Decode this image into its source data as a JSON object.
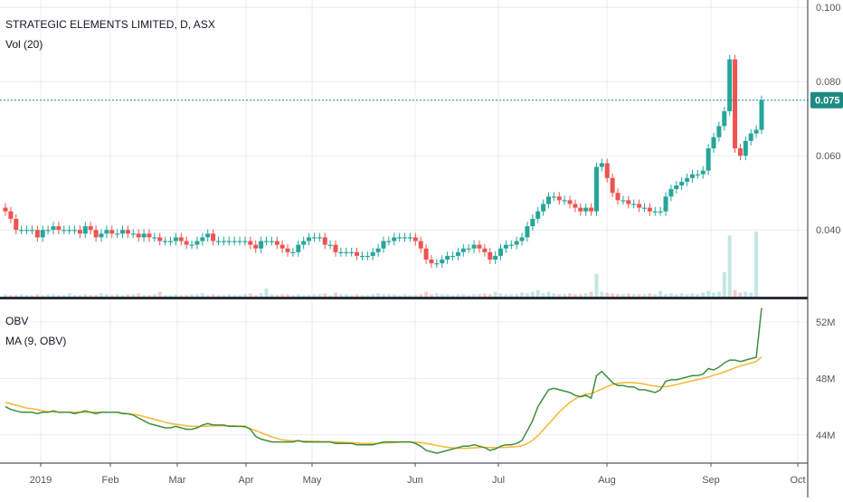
{
  "chart_header": {
    "title": "STRATEGIC ELEMENTS LIMITED, D, ASX",
    "volume_label": "Vol (20)"
  },
  "obv_header": {
    "label": "OBV",
    "ma_label": "MA (9, OBV)"
  },
  "colors": {
    "up": "#26a69a",
    "down": "#ef5350",
    "up_volume": "#9ad7d0",
    "down_volume": "#f5a6a4",
    "last_price": "#1d8a82",
    "obv": "#3e8e3e",
    "obv_ma": "#f7b731",
    "grid": "#e8ecf2",
    "axis_text": "#555555"
  },
  "chart_data": [
    {
      "type": "candlestick",
      "title": "STRATEGIC ELEMENTS LIMITED, D, ASX",
      "x_tick_labels": [
        "2019",
        "Feb",
        "Mar",
        "Apr",
        "May",
        "Jun",
        "Jul",
        "Aug",
        "Sep",
        "Oct"
      ],
      "y_tick_labels": [
        "0.100",
        "0.080",
        "0.060",
        "0.040"
      ],
      "ylim": [
        0.022,
        0.102
      ],
      "last_price": {
        "label": "0.075",
        "value": 0.075
      },
      "grid": true,
      "closes": [
        0.045,
        0.043,
        0.04,
        0.04,
        0.04,
        0.04,
        0.038,
        0.04,
        0.04,
        0.041,
        0.04,
        0.04,
        0.04,
        0.04,
        0.039,
        0.041,
        0.04,
        0.038,
        0.039,
        0.04,
        0.039,
        0.039,
        0.04,
        0.039,
        0.039,
        0.038,
        0.039,
        0.038,
        0.038,
        0.037,
        0.037,
        0.037,
        0.038,
        0.037,
        0.036,
        0.036,
        0.037,
        0.038,
        0.039,
        0.037,
        0.037,
        0.037,
        0.037,
        0.037,
        0.037,
        0.037,
        0.036,
        0.035,
        0.037,
        0.037,
        0.037,
        0.036,
        0.035,
        0.034,
        0.034,
        0.036,
        0.037,
        0.038,
        0.038,
        0.038,
        0.036,
        0.036,
        0.034,
        0.034,
        0.034,
        0.034,
        0.033,
        0.033,
        0.033,
        0.034,
        0.035,
        0.037,
        0.037,
        0.038,
        0.038,
        0.038,
        0.038,
        0.037,
        0.035,
        0.032,
        0.031,
        0.031,
        0.032,
        0.033,
        0.033,
        0.034,
        0.035,
        0.035,
        0.036,
        0.035,
        0.034,
        0.032,
        0.033,
        0.035,
        0.036,
        0.036,
        0.037,
        0.038,
        0.041,
        0.043,
        0.045,
        0.047,
        0.049,
        0.049,
        0.048,
        0.048,
        0.047,
        0.046,
        0.045,
        0.046,
        0.045,
        0.057,
        0.058,
        0.054,
        0.05,
        0.048,
        0.048,
        0.047,
        0.047,
        0.046,
        0.046,
        0.045,
        0.045,
        0.045,
        0.049,
        0.051,
        0.052,
        0.053,
        0.054,
        0.055,
        0.055,
        0.056,
        0.062,
        0.065,
        0.068,
        0.072,
        0.086,
        0.062,
        0.06,
        0.064,
        0.066,
        0.067,
        0.075
      ],
      "volume_ylim": [
        0,
        100
      ],
      "volume": [
        3,
        2,
        2,
        3,
        2,
        2,
        3,
        2,
        3,
        3,
        2,
        2,
        4,
        2,
        2,
        3,
        2,
        2,
        4,
        3,
        2,
        3,
        2,
        3,
        3,
        4,
        2,
        2,
        3,
        6,
        2,
        2,
        3,
        2,
        2,
        3,
        3,
        4,
        2,
        3,
        2,
        2,
        3,
        2,
        2,
        3,
        4,
        2,
        4,
        10,
        3,
        2,
        3,
        3,
        2,
        3,
        2,
        2,
        3,
        3,
        4,
        2,
        5,
        3,
        3,
        2,
        3,
        2,
        2,
        3,
        4,
        3,
        3,
        3,
        2,
        3,
        2,
        2,
        3,
        6,
        3,
        4,
        3,
        3,
        2,
        3,
        3,
        2,
        3,
        3,
        4,
        3,
        6,
        4,
        3,
        3,
        3,
        5,
        4,
        6,
        8,
        4,
        6,
        4,
        3,
        3,
        4,
        3,
        3,
        4,
        6,
        28,
        6,
        5,
        4,
        3,
        3,
        4,
        3,
        3,
        3,
        4,
        3,
        7,
        3,
        4,
        3,
        4,
        3,
        4,
        3,
        5,
        7,
        5,
        6,
        30,
        75,
        8,
        5,
        6,
        5,
        80
      ]
    },
    {
      "type": "line",
      "title": "OBV",
      "y_tick_labels": [
        "52M",
        "48M",
        "44M"
      ],
      "ylim": [
        42000000,
        53600000
      ],
      "series": [
        {
          "name": "OBV",
          "values": [
            46000000,
            45800000,
            45700000,
            45600000,
            45600000,
            45600000,
            45500000,
            45600000,
            45600000,
            45700000,
            45600000,
            45600000,
            45600000,
            45500000,
            45600000,
            45700000,
            45600000,
            45500000,
            45600000,
            45600000,
            45600000,
            45600000,
            45500000,
            45500000,
            45400000,
            45200000,
            45000000,
            44800000,
            44700000,
            44600000,
            44500000,
            44500000,
            44600000,
            44500000,
            44400000,
            44400000,
            44500000,
            44700000,
            44800000,
            44700000,
            44700000,
            44700000,
            44600000,
            44600000,
            44600000,
            44600000,
            44400000,
            43900000,
            43700000,
            43600000,
            43500000,
            43500000,
            43500000,
            43500000,
            43500000,
            43600000,
            43500000,
            43500000,
            43500000,
            43500000,
            43500000,
            43500000,
            43400000,
            43400000,
            43400000,
            43400000,
            43300000,
            43300000,
            43300000,
            43300000,
            43400000,
            43500000,
            43500000,
            43500000,
            43500000,
            43500000,
            43500000,
            43400000,
            43200000,
            42900000,
            42800000,
            42700000,
            42800000,
            42900000,
            43000000,
            43100000,
            43200000,
            43200000,
            43300000,
            43200000,
            43100000,
            42900000,
            43000000,
            43200000,
            43300000,
            43300000,
            43400000,
            43600000,
            44300000,
            45000000,
            46000000,
            46600000,
            47200000,
            47300000,
            47200000,
            47100000,
            47000000,
            46800000,
            46700000,
            46800000,
            46600000,
            48200000,
            48500000,
            48100000,
            47700000,
            47500000,
            47500000,
            47400000,
            47400000,
            47200000,
            47200000,
            47100000,
            47000000,
            47200000,
            47800000,
            47900000,
            47900000,
            48000000,
            48100000,
            48200000,
            48200000,
            48300000,
            48700000,
            48600000,
            48800000,
            49100000,
            49300000,
            49300000,
            49200000,
            49300000,
            49400000,
            49500000,
            53000000
          ]
        },
        {
          "name": "MA (9, OBV)",
          "values": [
            46300000,
            46200000,
            46100000,
            46000000,
            45900000,
            45850000,
            45800000,
            45700000,
            45650000,
            45630000,
            45620000,
            45600000,
            45600000,
            45600000,
            45600000,
            45600000,
            45600000,
            45600000,
            45600000,
            45600000,
            45600000,
            45600000,
            45550000,
            45500000,
            45450000,
            45400000,
            45300000,
            45200000,
            45100000,
            45000000,
            44900000,
            44800000,
            44750000,
            44700000,
            44650000,
            44600000,
            44600000,
            44600000,
            44620000,
            44650000,
            44650000,
            44650000,
            44650000,
            44650000,
            44600000,
            44550000,
            44450000,
            44300000,
            44150000,
            44000000,
            43850000,
            43750000,
            43650000,
            43600000,
            43580000,
            43560000,
            43550000,
            43550000,
            43540000,
            43530000,
            43520000,
            43510000,
            43500000,
            43480000,
            43460000,
            43440000,
            43420000,
            43400000,
            43400000,
            43400000,
            43400000,
            43420000,
            43440000,
            43460000,
            43480000,
            43500000,
            43500000,
            43480000,
            43450000,
            43400000,
            43330000,
            43250000,
            43180000,
            43120000,
            43080000,
            43050000,
            43050000,
            43060000,
            43080000,
            43100000,
            43100000,
            43100000,
            43100000,
            43110000,
            43120000,
            43140000,
            43170000,
            43230000,
            43380000,
            43620000,
            43950000,
            44350000,
            44780000,
            45200000,
            45620000,
            45980000,
            46300000,
            46550000,
            46750000,
            46880000,
            46920000,
            47080000,
            47250000,
            47420000,
            47560000,
            47650000,
            47700000,
            47720000,
            47700000,
            47660000,
            47600000,
            47520000,
            47450000,
            47400000,
            47420000,
            47480000,
            47560000,
            47650000,
            47740000,
            47830000,
            47920000,
            48000000,
            48100000,
            48230000,
            48330000,
            48450000,
            48600000,
            48750000,
            48880000,
            48980000,
            49080000,
            49200000,
            49520000
          ]
        }
      ]
    }
  ]
}
